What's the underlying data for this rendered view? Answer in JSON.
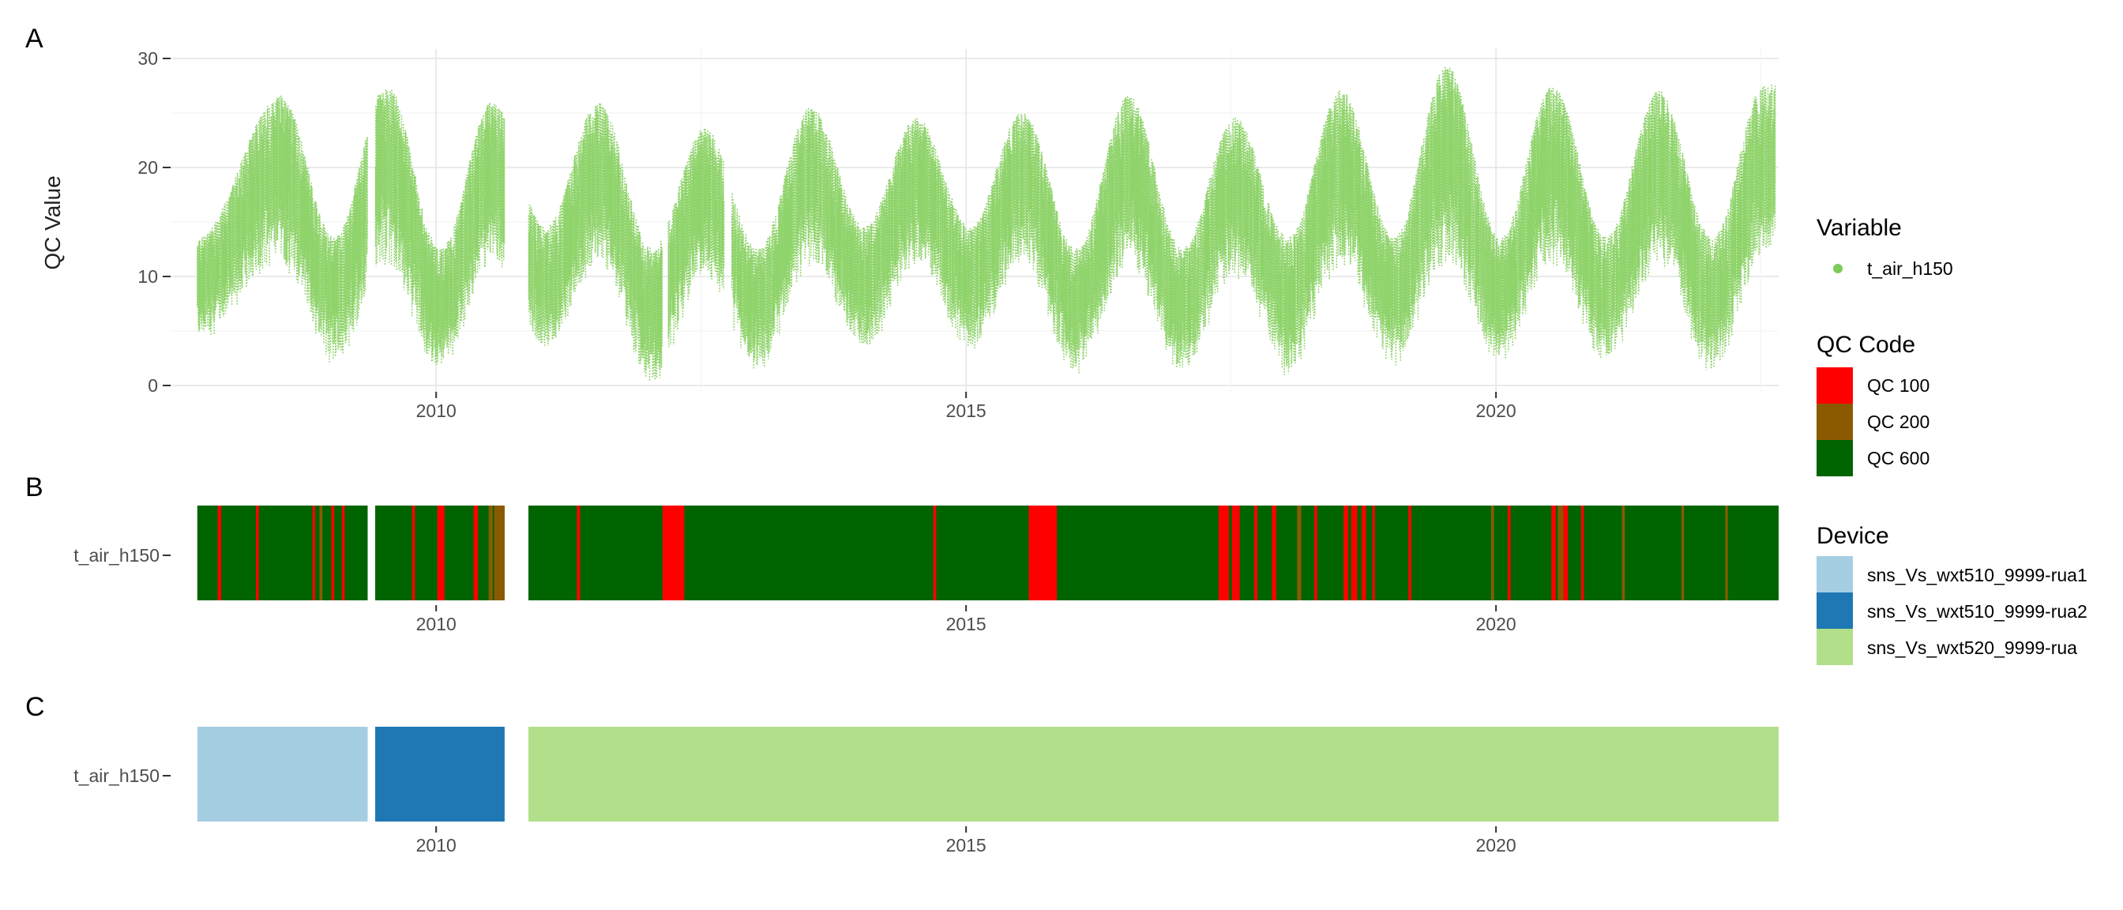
{
  "colors": {
    "temp_points": "#8fd36b",
    "temp_legend_dot": "#7ccc59",
    "qc100": "#ff0000",
    "qc200": "#8b5a00",
    "qc600": "#006400",
    "device_rua1": "#a6cee3",
    "device_rua2": "#1f78b4",
    "device_rua": "#b2df8a",
    "grid": "#e4e4e4",
    "text": "#222222",
    "tick_text": "#4d4d4d"
  },
  "panels": {
    "a": {
      "label": "A",
      "ylabel": "QC Value"
    },
    "b": {
      "label": "B",
      "row_label": "t_air_h150"
    },
    "c": {
      "label": "C",
      "row_label": "t_air_h150"
    }
  },
  "legend": {
    "variable": {
      "title": "Variable",
      "items": [
        {
          "label": "t_air_h150",
          "color_key": "temp_legend_dot"
        }
      ]
    },
    "qc": {
      "title": "QC Code",
      "items": [
        {
          "label": "QC 100",
          "color_key": "qc100"
        },
        {
          "label": "QC 200",
          "color_key": "qc200"
        },
        {
          "label": "QC 600",
          "color_key": "qc600"
        }
      ]
    },
    "device": {
      "title": "Device",
      "items": [
        {
          "label": "sns_Vs_wxt510_9999-rua1",
          "color_key": "device_rua1"
        },
        {
          "label": "sns_Vs_wxt510_9999-rua2",
          "color_key": "device_rua2"
        },
        {
          "label": "sns_Vs_wxt520_9999-rua",
          "color_key": "device_rua"
        }
      ]
    }
  },
  "chart_data": [
    {
      "panel": "A",
      "type": "scatter",
      "series": [
        {
          "name": "t_air_h150",
          "color_key": "temp_points"
        }
      ],
      "xlim": [
        "2007-07-01",
        "2022-09-01"
      ],
      "ylim": [
        0,
        30
      ],
      "xticks": [
        "2010",
        "2015",
        "2020"
      ],
      "yticks": [
        0,
        10,
        20,
        30
      ],
      "ylabel": "QC Value",
      "grid": true,
      "data_gaps": [
        [
          "2009-05-10",
          "2009-06-05"
        ],
        [
          "2010-08-25",
          "2010-11-15"
        ],
        [
          "2012-02-20",
          "2012-03-10"
        ],
        [
          "2012-09-20",
          "2012-10-15"
        ]
      ],
      "seasonal_envelope": {
        "description_x_is_date_y_is_temperature_range_in_degC": true,
        "points": [
          {
            "x": "2007-10-01",
            "min": 5,
            "max": 13
          },
          {
            "x": "2008-07-15",
            "min": 12,
            "max": 26
          },
          {
            "x": "2009-01-15",
            "min": 3,
            "max": 13
          },
          {
            "x": "2009-07-15",
            "min": 12,
            "max": 27
          },
          {
            "x": "2010-01-15",
            "min": 2,
            "max": 12
          },
          {
            "x": "2010-07-15",
            "min": 12,
            "max": 25.5
          },
          {
            "x": "2011-01-15",
            "min": 4,
            "max": 14
          },
          {
            "x": "2011-07-15",
            "min": 12,
            "max": 25.5
          },
          {
            "x": "2012-01-15",
            "min": 1,
            "max": 12
          },
          {
            "x": "2012-07-15",
            "min": 11,
            "max": 23
          },
          {
            "x": "2013-01-15",
            "min": 2,
            "max": 12
          },
          {
            "x": "2013-07-15",
            "min": 12,
            "max": 25
          },
          {
            "x": "2014-01-15",
            "min": 4,
            "max": 14
          },
          {
            "x": "2014-07-15",
            "min": 12,
            "max": 24
          },
          {
            "x": "2015-01-15",
            "min": 4,
            "max": 14
          },
          {
            "x": "2015-07-15",
            "min": 12,
            "max": 24.5
          },
          {
            "x": "2016-01-15",
            "min": 2,
            "max": 12
          },
          {
            "x": "2016-07-15",
            "min": 12,
            "max": 26
          },
          {
            "x": "2017-01-15",
            "min": 2,
            "max": 12
          },
          {
            "x": "2017-07-15",
            "min": 11,
            "max": 24
          },
          {
            "x": "2018-01-15",
            "min": 2,
            "max": 13
          },
          {
            "x": "2018-07-15",
            "min": 12,
            "max": 26.5
          },
          {
            "x": "2019-01-15",
            "min": 3,
            "max": 13
          },
          {
            "x": "2019-07-15",
            "min": 12,
            "max": 28.8
          },
          {
            "x": "2020-01-15",
            "min": 3,
            "max": 13
          },
          {
            "x": "2020-07-15",
            "min": 12,
            "max": 27
          },
          {
            "x": "2021-01-15",
            "min": 3,
            "max": 13
          },
          {
            "x": "2021-07-15",
            "min": 12,
            "max": 26.5
          },
          {
            "x": "2022-01-15",
            "min": 2,
            "max": 13
          },
          {
            "x": "2022-07-15",
            "min": 13,
            "max": 27
          }
        ]
      }
    },
    {
      "panel": "B",
      "type": "heatmap",
      "row": "t_air_h150",
      "xticks": [
        "2010",
        "2015",
        "2020"
      ],
      "base_intervals": [
        {
          "start": "2007-10-01",
          "end": "2009-05-10",
          "qc": "QC 600"
        },
        {
          "start": "2009-06-05",
          "end": "2010-08-25",
          "qc": "QC 600"
        },
        {
          "start": "2010-11-15",
          "end": "2022-09-01",
          "qc": "QC 600"
        }
      ],
      "flagged_intervals": [
        {
          "start": "2007-12-10",
          "end": "2007-12-22",
          "qc": "QC 100"
        },
        {
          "start": "2008-04-20",
          "end": "2008-04-30",
          "qc": "QC 100"
        },
        {
          "start": "2008-11-01",
          "end": "2008-11-10",
          "qc": "QC 100"
        },
        {
          "start": "2008-11-25",
          "end": "2008-12-05",
          "qc": "QC 200"
        },
        {
          "start": "2009-01-05",
          "end": "2009-01-15",
          "qc": "QC 100"
        },
        {
          "start": "2009-02-10",
          "end": "2009-02-20",
          "qc": "QC 100"
        },
        {
          "start": "2009-10-10",
          "end": "2009-10-20",
          "qc": "QC 100"
        },
        {
          "start": "2010-01-05",
          "end": "2010-01-30",
          "qc": "QC 100"
        },
        {
          "start": "2010-05-10",
          "end": "2010-05-25",
          "qc": "QC 100"
        },
        {
          "start": "2010-07-01",
          "end": "2010-07-15",
          "qc": "QC 200"
        },
        {
          "start": "2010-07-20",
          "end": "2010-08-25",
          "qc": "QC 200"
        },
        {
          "start": "2011-05-01",
          "end": "2011-05-12",
          "qc": "QC 100"
        },
        {
          "start": "2012-02-20",
          "end": "2012-04-10",
          "qc": "QC 100"
        },
        {
          "start": "2012-04-10",
          "end": "2012-05-05",
          "qc": "QC 100"
        },
        {
          "start": "2014-09-10",
          "end": "2014-09-20",
          "qc": "QC 100"
        },
        {
          "start": "2015-08-05",
          "end": "2015-11-10",
          "qc": "QC 100"
        },
        {
          "start": "2017-05-20",
          "end": "2017-06-25",
          "qc": "QC 100"
        },
        {
          "start": "2017-07-05",
          "end": "2017-08-01",
          "qc": "QC 100"
        },
        {
          "start": "2017-09-20",
          "end": "2017-10-01",
          "qc": "QC 100"
        },
        {
          "start": "2017-11-20",
          "end": "2017-12-05",
          "qc": "QC 100"
        },
        {
          "start": "2018-02-15",
          "end": "2018-03-01",
          "qc": "QC 200"
        },
        {
          "start": "2018-04-15",
          "end": "2018-04-25",
          "qc": "QC 100"
        },
        {
          "start": "2018-07-25",
          "end": "2018-08-10",
          "qc": "QC 100"
        },
        {
          "start": "2018-08-20",
          "end": "2018-09-10",
          "qc": "QC 100"
        },
        {
          "start": "2018-09-25",
          "end": "2018-10-10",
          "qc": "QC 100"
        },
        {
          "start": "2018-11-01",
          "end": "2018-11-10",
          "qc": "QC 100"
        },
        {
          "start": "2019-03-05",
          "end": "2019-03-15",
          "qc": "QC 100"
        },
        {
          "start": "2019-12-15",
          "end": "2019-12-25",
          "qc": "QC 200"
        },
        {
          "start": "2020-02-10",
          "end": "2020-02-20",
          "qc": "QC 100"
        },
        {
          "start": "2020-07-10",
          "end": "2020-07-25",
          "qc": "QC 100"
        },
        {
          "start": "2020-08-01",
          "end": "2020-08-20",
          "qc": "QC 200"
        },
        {
          "start": "2020-08-20",
          "end": "2020-09-05",
          "qc": "QC 100"
        },
        {
          "start": "2020-10-20",
          "end": "2020-10-30",
          "qc": "QC 100"
        },
        {
          "start": "2021-03-10",
          "end": "2021-03-20",
          "qc": "QC 200"
        },
        {
          "start": "2021-10-01",
          "end": "2021-10-10",
          "qc": "QC 200"
        },
        {
          "start": "2022-03-01",
          "end": "2022-03-10",
          "qc": "QC 200"
        }
      ]
    },
    {
      "panel": "C",
      "type": "heatmap",
      "row": "t_air_h150",
      "xticks": [
        "2010",
        "2015",
        "2020"
      ],
      "intervals": [
        {
          "start": "2007-10-01",
          "end": "2009-05-10",
          "device": "sns_Vs_wxt510_9999-rua1",
          "color_key": "device_rua1"
        },
        {
          "start": "2009-06-05",
          "end": "2010-08-25",
          "device": "sns_Vs_wxt510_9999-rua2",
          "color_key": "device_rua2"
        },
        {
          "start": "2010-11-15",
          "end": "2022-09-01",
          "device": "sns_Vs_wxt520_9999-rua",
          "color_key": "device_rua"
        }
      ]
    }
  ]
}
